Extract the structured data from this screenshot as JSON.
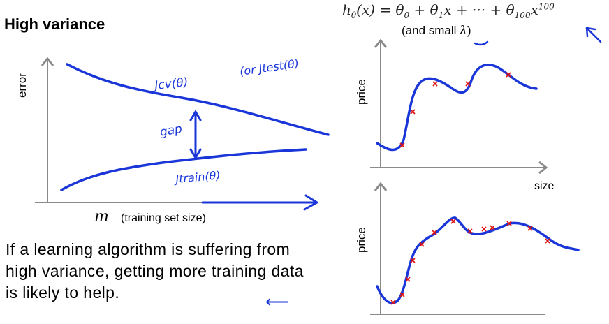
{
  "title": "High variance",
  "hypothesis": {
    "lhs": "h",
    "lhs_sub": "θ",
    "lhs_arg": "(x) = θ",
    "t0_sub": "0",
    "plus1": " + θ",
    "t1_sub": "1",
    "mid": "x + ··· + θ",
    "t100_sub": "100",
    "x": "x",
    "power": "100"
  },
  "lambda_note": {
    "prefix": "(and small ",
    "lambda": "λ",
    "suffix": ")"
  },
  "learning_curve": {
    "error_axis_label": "error",
    "m_symbol": "m",
    "m_description": "(training set size)",
    "jcv_label": "Jcv(θ)",
    "jtest_label": "(or Jtest(θ)",
    "gap_label": "gap",
    "jtrain_label": "Jtrain(θ)"
  },
  "price_plots": {
    "price_label_top": "price",
    "price_label_bottom": "price",
    "size_label": "size"
  },
  "statement": "If a learning algorithm is suffering from high variance, getting more training data is likely to help.",
  "colors": {
    "ink": "#1a36d8",
    "marker": "#e01010",
    "axis": "#8a8a8a"
  }
}
